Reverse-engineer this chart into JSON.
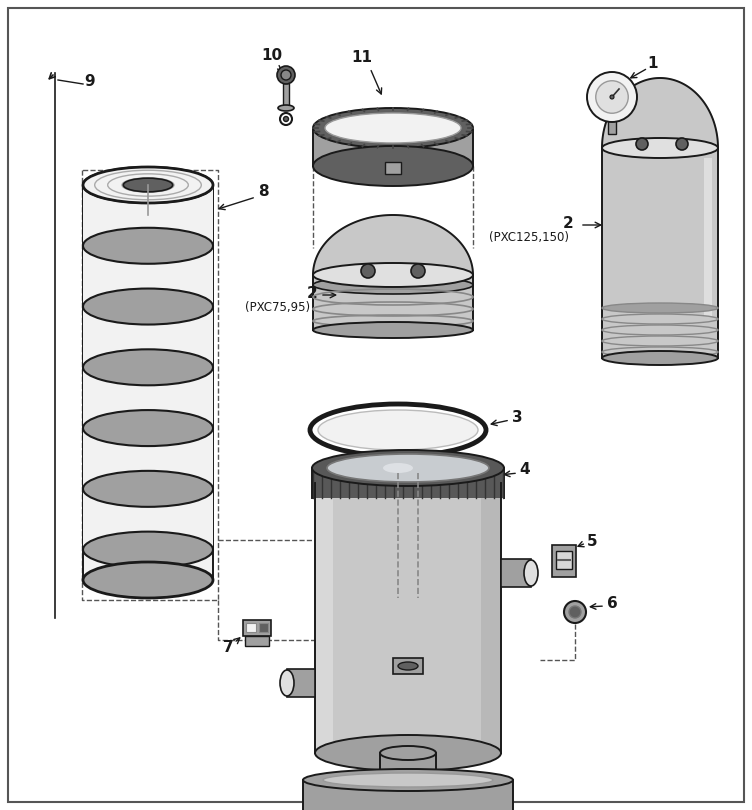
{
  "bg_color": "#ffffff",
  "part_color_light": "#c8c8c8",
  "part_color_mid": "#a0a0a0",
  "part_color_dark": "#606060",
  "part_color_white": "#f2f2f2",
  "part_color_inner": "#e0e0e0",
  "line_color": "#1a1a1a",
  "label_color": "#1a1a1a",
  "dashed_color": "#555555"
}
